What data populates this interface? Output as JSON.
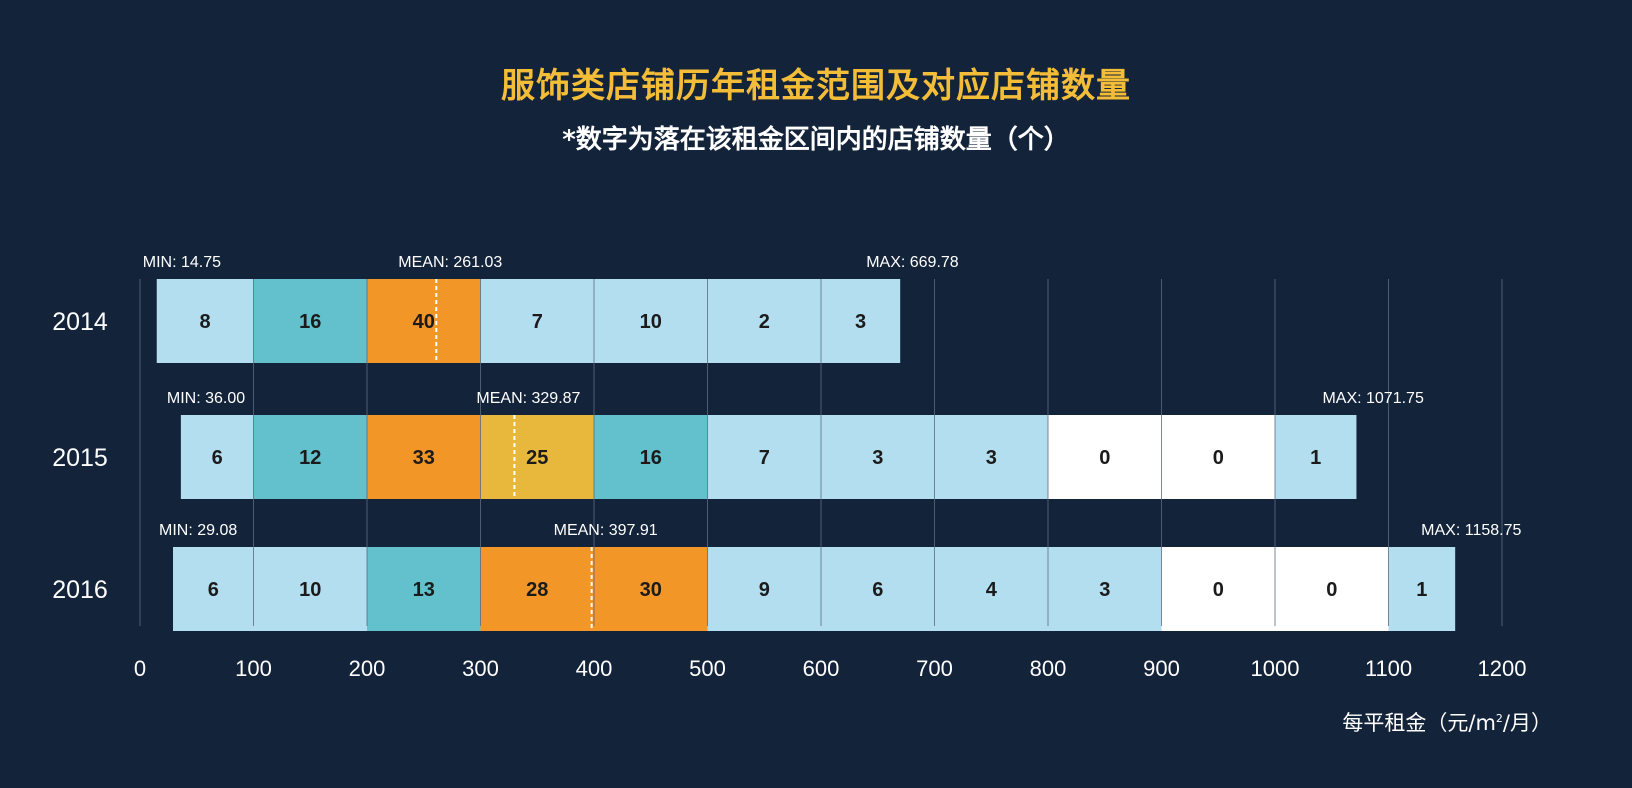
{
  "chart_data": {
    "type": "bar",
    "title": "服饰类店铺历年租金范围及对应店铺数量",
    "subtitle": "*数字为落在该租金区间内的店铺数量（个）",
    "xlabel": {
      "prefix": "每平租金（元/m",
      "sup": "2",
      "suffix": "/月）"
    },
    "xlim": [
      0,
      1200
    ],
    "xticks": [
      0,
      100,
      200,
      300,
      400,
      500,
      600,
      700,
      800,
      900,
      1000,
      1100,
      1200
    ],
    "bin_width": 100,
    "stats_labels": {
      "min": "MIN: ",
      "mean": "MEAN: ",
      "max": "MAX: "
    },
    "colors": {
      "background": "#13233a",
      "title": "#f4bd37",
      "text": "#ffffff",
      "gridline": "#5c6a7f",
      "bin_light": "#b3def0",
      "bin_teal": "#62c1cd",
      "bin_orange": "#f29627",
      "bin_yellow": "#e8b83c",
      "bin_empty": "#ffffff",
      "mean_line": "#ffffff",
      "count_text": "#1b1b1b"
    },
    "series": [
      {
        "name": "2014",
        "min": 14.75,
        "mean": 261.03,
        "max": 669.78,
        "min_text": "14.75",
        "mean_text": "261.03",
        "max_text": "669.78",
        "bins": [
          {
            "start": 0,
            "count": 8,
            "color": "bin_light"
          },
          {
            "start": 100,
            "count": 16,
            "color": "bin_teal"
          },
          {
            "start": 200,
            "count": 40,
            "color": "bin_orange"
          },
          {
            "start": 300,
            "count": 7,
            "color": "bin_light"
          },
          {
            "start": 400,
            "count": 10,
            "color": "bin_light"
          },
          {
            "start": 500,
            "count": 2,
            "color": "bin_light"
          },
          {
            "start": 600,
            "count": 3,
            "color": "bin_light"
          }
        ]
      },
      {
        "name": "2015",
        "min": 36.0,
        "mean": 329.87,
        "max": 1071.75,
        "min_text": "36.00",
        "mean_text": "329.87",
        "max_text": "1071.75",
        "bins": [
          {
            "start": 0,
            "count": 6,
            "color": "bin_light"
          },
          {
            "start": 100,
            "count": 12,
            "color": "bin_teal"
          },
          {
            "start": 200,
            "count": 33,
            "color": "bin_orange"
          },
          {
            "start": 300,
            "count": 25,
            "color": "bin_yellow"
          },
          {
            "start": 400,
            "count": 16,
            "color": "bin_teal"
          },
          {
            "start": 500,
            "count": 7,
            "color": "bin_light"
          },
          {
            "start": 600,
            "count": 3,
            "color": "bin_light"
          },
          {
            "start": 700,
            "count": 3,
            "color": "bin_light"
          },
          {
            "start": 800,
            "count": 0,
            "color": "bin_empty"
          },
          {
            "start": 900,
            "count": 0,
            "color": "bin_empty"
          },
          {
            "start": 1000,
            "count": 1,
            "color": "bin_light"
          }
        ]
      },
      {
        "name": "2016",
        "min": 29.08,
        "mean": 397.91,
        "max": 1158.75,
        "min_text": "29.08",
        "mean_text": "397.91",
        "max_text": "1158.75",
        "bins": [
          {
            "start": 0,
            "count": 6,
            "color": "bin_light"
          },
          {
            "start": 100,
            "count": 10,
            "color": "bin_light"
          },
          {
            "start": 200,
            "count": 13,
            "color": "bin_teal"
          },
          {
            "start": 300,
            "count": 28,
            "color": "bin_orange"
          },
          {
            "start": 400,
            "count": 30,
            "color": "bin_orange"
          },
          {
            "start": 500,
            "count": 9,
            "color": "bin_light"
          },
          {
            "start": 600,
            "count": 6,
            "color": "bin_light"
          },
          {
            "start": 700,
            "count": 4,
            "color": "bin_light"
          },
          {
            "start": 800,
            "count": 3,
            "color": "bin_light"
          },
          {
            "start": 900,
            "count": 0,
            "color": "bin_empty"
          },
          {
            "start": 1000,
            "count": 0,
            "color": "bin_empty"
          },
          {
            "start": 1100,
            "count": 1,
            "color": "bin_light"
          }
        ]
      }
    ]
  }
}
